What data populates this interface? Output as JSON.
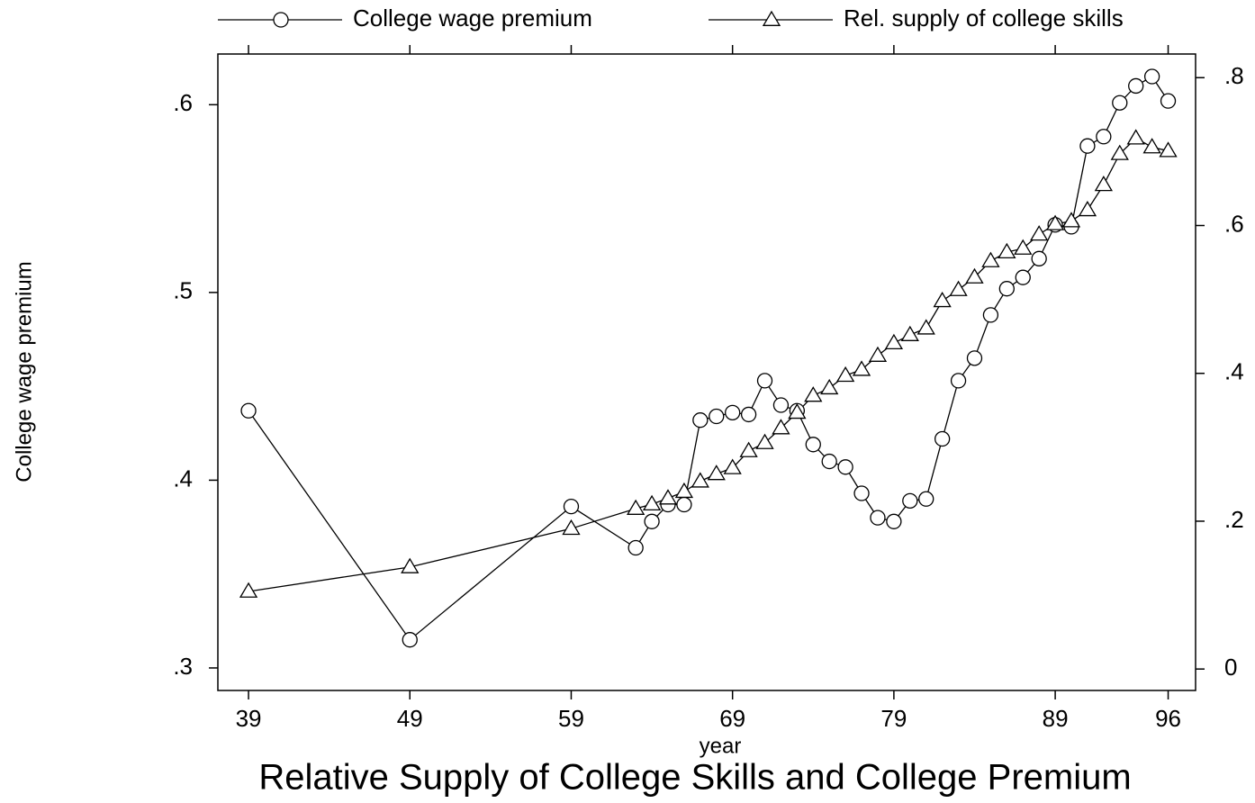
{
  "chart_data": {
    "type": "line",
    "title": "Relative Supply of College Skills and College Premium",
    "x_label": "year",
    "y_label": "College wage premium",
    "x": [
      39,
      49,
      59,
      63,
      64,
      65,
      66,
      67,
      68,
      69,
      70,
      71,
      72,
      73,
      74,
      75,
      76,
      77,
      78,
      79,
      80,
      81,
      82,
      83,
      84,
      85,
      86,
      87,
      88,
      89,
      90,
      91,
      92,
      93,
      94,
      95,
      96
    ],
    "series": [
      {
        "name": "College wage premium",
        "color": "#000000",
        "marker": "circle",
        "values": [
          0.437,
          0.315,
          0.386,
          0.364,
          0.378,
          0.387,
          0.387,
          0.432,
          0.434,
          0.436,
          0.435,
          0.453,
          0.44,
          0.437,
          0.419,
          0.41,
          0.407,
          0.393,
          0.38,
          0.378,
          0.389,
          0.39,
          0.422,
          0.453,
          0.465,
          0.488,
          0.502,
          0.508,
          0.518,
          0.536,
          0.535,
          0.578,
          0.583,
          0.601,
          0.61,
          0.615,
          0.602
        ]
      },
      {
        "name": "Rel. supply of college skills",
        "color": "#000000",
        "marker": "triangle",
        "axis": "y2",
        "values": [
          0.105,
          0.138,
          0.19,
          0.217,
          0.223,
          0.231,
          0.24,
          0.254,
          0.264,
          0.272,
          0.295,
          0.306,
          0.326,
          0.347,
          0.37,
          0.38,
          0.397,
          0.405,
          0.424,
          0.441,
          0.452,
          0.461,
          0.498,
          0.513,
          0.53,
          0.552,
          0.564,
          0.569,
          0.588,
          0.602,
          0.606,
          0.621,
          0.655,
          0.697,
          0.718,
          0.706,
          0.701
        ]
      }
    ],
    "xlim": [
      37.1,
      97.7
    ],
    "xticks": [
      39,
      49,
      59,
      69,
      79,
      89,
      96
    ],
    "ylim": [
      0.288,
      0.627
    ],
    "yticks": [
      {
        "value": 0.3,
        "label": ".3"
      },
      {
        "value": 0.4,
        "label": ".4"
      },
      {
        "value": 0.5,
        "label": ".5"
      },
      {
        "value": 0.6,
        "label": ".6"
      }
    ],
    "y2lim": [
      -0.029,
      0.832
    ],
    "y2ticks": [
      0,
      {
        "value": 0.2,
        "label": ".2"
      },
      {
        "value": 0.4,
        "label": ".4"
      },
      {
        "value": 0.6,
        "label": ".6"
      },
      {
        "value": 0.8,
        "label": ".8"
      }
    ],
    "grid": false,
    "legend": "top"
  }
}
